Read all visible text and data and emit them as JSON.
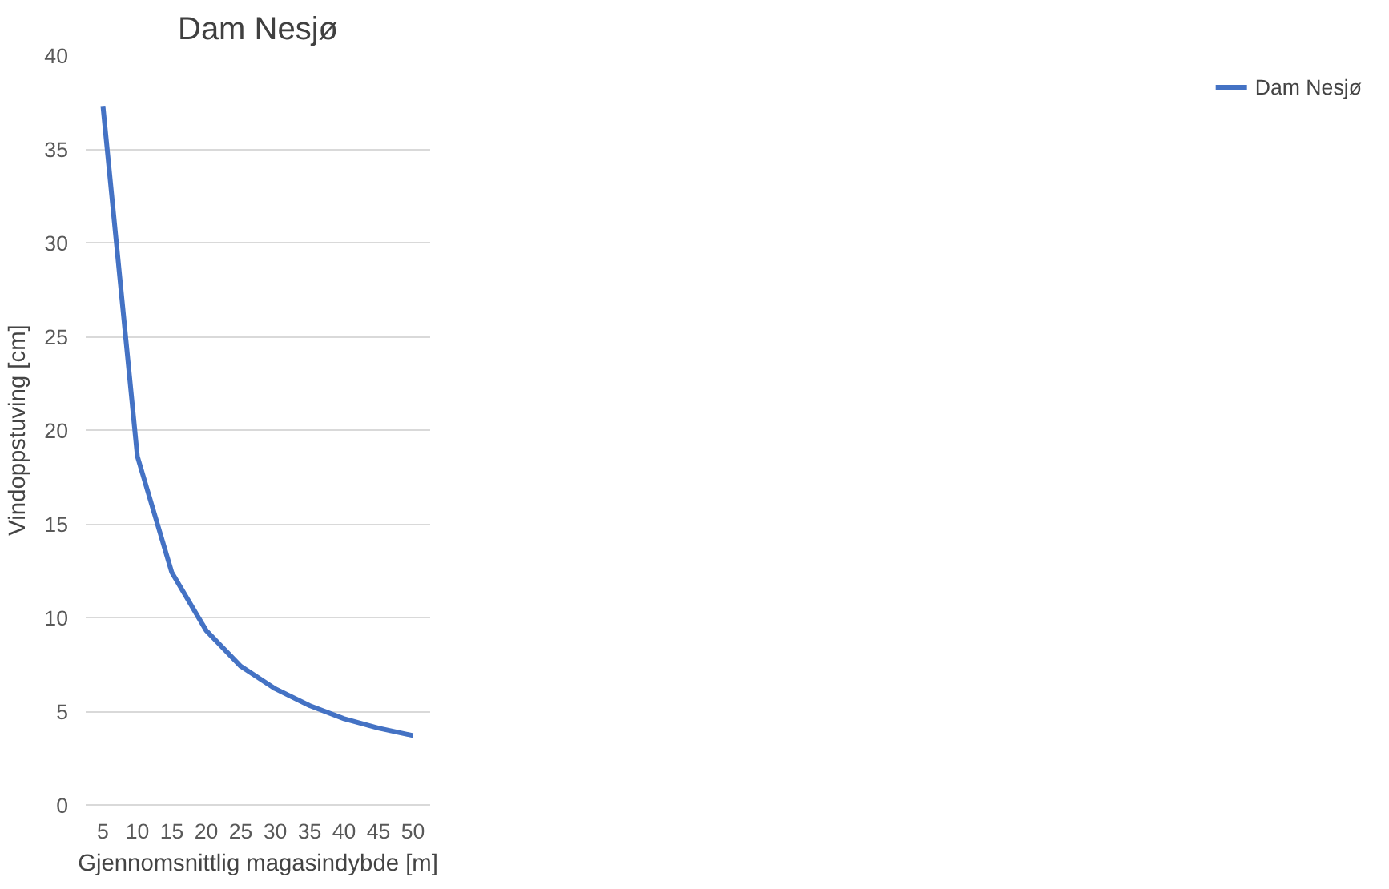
{
  "chart_data": {
    "type": "line",
    "title": "Dam Nesjø",
    "xlabel": "Gjennomsnittlig magasindybde [m]",
    "ylabel": "Vindoppstuving [cm]",
    "categories": [
      "5",
      "10",
      "15",
      "20",
      "25",
      "30",
      "35",
      "40",
      "45",
      "50"
    ],
    "series": [
      {
        "name": "Dam Nesjø",
        "color": "#4472c4",
        "values": [
          37.3,
          18.6,
          12.4,
          9.3,
          7.4,
          6.2,
          5.3,
          4.6,
          4.1,
          3.7
        ]
      }
    ],
    "ylim": [
      0,
      40
    ],
    "yticks": [
      0,
      5,
      10,
      15,
      20,
      25,
      30,
      35,
      40
    ],
    "grid": "y",
    "legend": "right",
    "marker": "none",
    "line_style": "solid"
  }
}
